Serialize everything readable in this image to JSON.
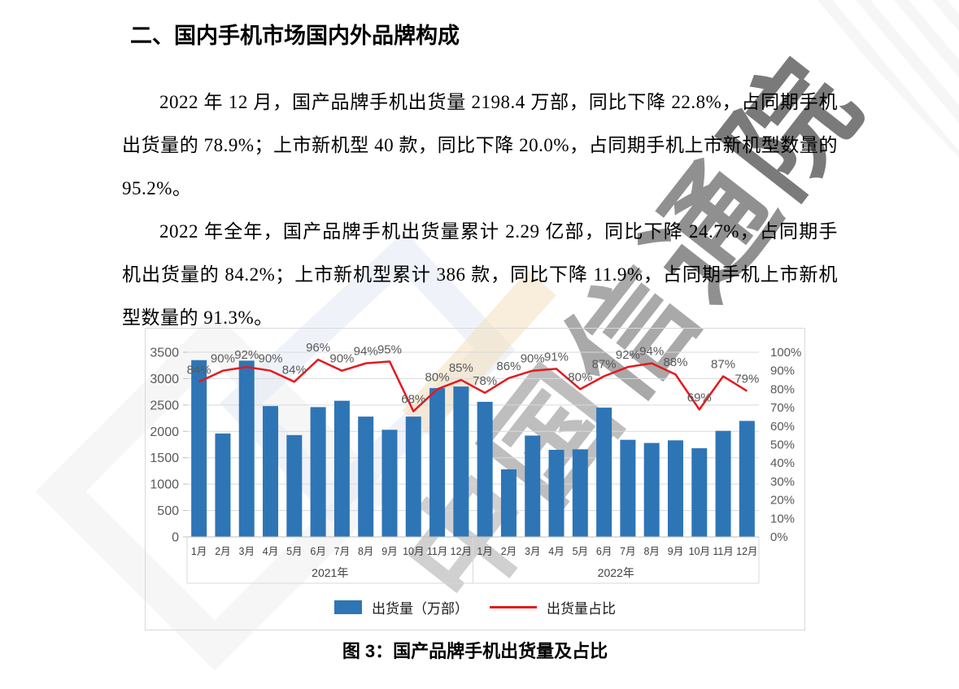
{
  "page": {
    "heading": "二、国内手机市场国内外品牌构成",
    "paragraph1": "2022 年 12 月，国产品牌手机出货量 2198.4 万部，同比下降 22.8%，占同期手机出货量的 78.9%；上市新机型 40 款，同比下降 20.0%，占同期手机上市新机型数量的 95.2%。",
    "paragraph2": "2022 年全年，国产品牌手机出货量累计 2.29 亿部，同比下降 24.7%，占同期手机出货量的 84.2%；上市新机型累计 386 款，同比下降 11.9%，占同期手机上市新机型数量的 91.3%。",
    "figure_caption": "图 3：国产品牌手机出货量及占比",
    "watermark": "中国信通院"
  },
  "chart_data": {
    "type": "bar+line",
    "months": [
      "1月",
      "2月",
      "3月",
      "4月",
      "5月",
      "6月",
      "7月",
      "8月",
      "9月",
      "10月",
      "11月",
      "12月"
    ],
    "groups": [
      "2021年",
      "2022年"
    ],
    "series": [
      {
        "name": "出货量（万部）",
        "type": "bar",
        "color": "#2e75b6",
        "axis": "left",
        "values": [
          3350,
          1960,
          3340,
          2480,
          1930,
          2460,
          2580,
          2280,
          2030,
          2280,
          2820,
          2850,
          2560,
          1280,
          1920,
          1650,
          1660,
          2450,
          1840,
          1780,
          1830,
          1680,
          2010,
          2198
        ]
      },
      {
        "name": "出货量占比",
        "type": "line",
        "color": "#e21b1f",
        "axis": "right",
        "values": [
          84,
          90,
          92,
          90,
          84,
          96,
          90,
          94,
          95,
          68,
          80,
          85,
          78,
          86,
          90,
          91,
          80,
          87,
          92,
          94,
          88,
          69,
          87,
          79
        ],
        "label_suffix": "%"
      }
    ],
    "left_axis": {
      "min": 0,
      "max": 3500,
      "step": 500,
      "tick_labels": [
        "0",
        "500",
        "1000",
        "1500",
        "2000",
        "2500",
        "3000",
        "3500"
      ]
    },
    "right_axis": {
      "min": 0,
      "max": 100,
      "step": 10,
      "suffix": "%",
      "tick_labels": [
        "0%",
        "10%",
        "20%",
        "30%",
        "40%",
        "50%",
        "60%",
        "70%",
        "80%",
        "90%",
        "100%"
      ]
    },
    "grid": true,
    "legend_position": "bottom"
  }
}
